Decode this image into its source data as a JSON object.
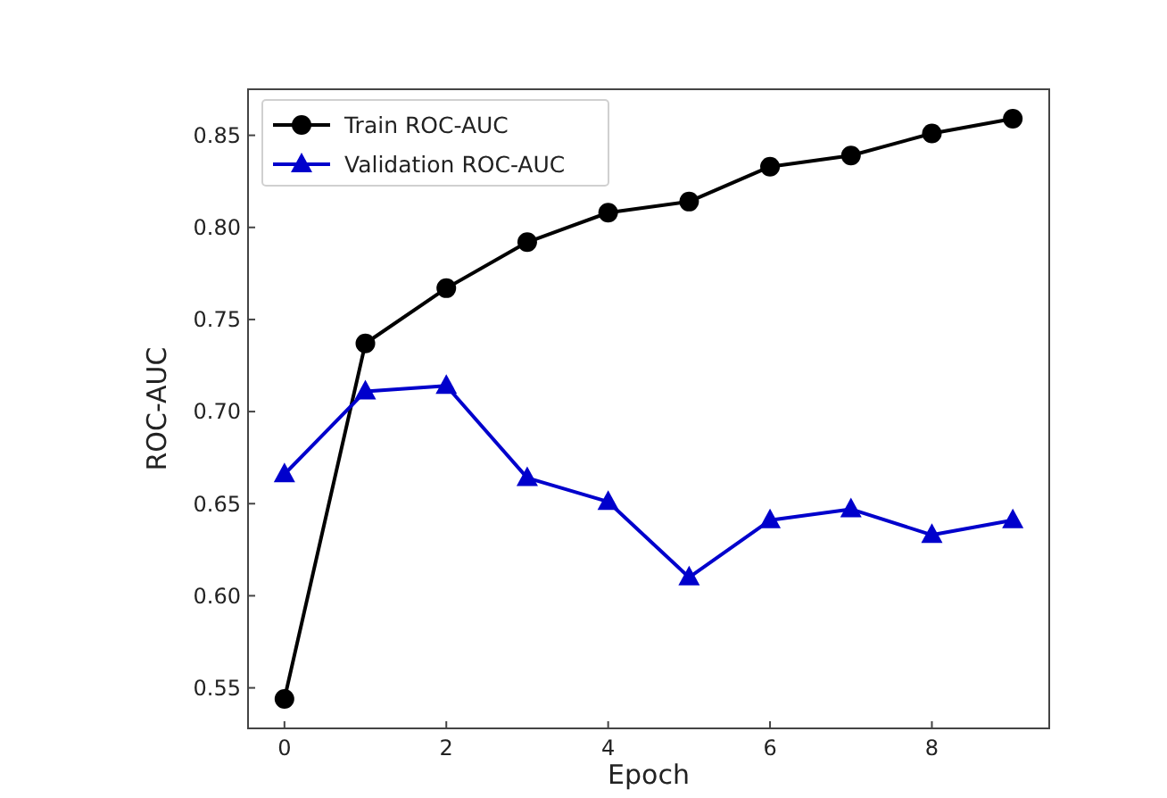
{
  "chart_data": {
    "type": "line",
    "xlabel": "Epoch",
    "ylabel": "ROC-AUC",
    "x": [
      0,
      1,
      2,
      3,
      4,
      5,
      6,
      7,
      8,
      9
    ],
    "series": [
      {
        "name": "Train ROC-AUC",
        "color": "#000000",
        "marker": "circle",
        "values": [
          0.544,
          0.737,
          0.767,
          0.792,
          0.808,
          0.814,
          0.833,
          0.839,
          0.851,
          0.859
        ]
      },
      {
        "name": "Validation ROC-AUC",
        "color": "#0000cc",
        "marker": "triangle",
        "values": [
          0.666,
          0.711,
          0.714,
          0.664,
          0.651,
          0.61,
          0.641,
          0.647,
          0.633,
          0.641
        ]
      }
    ],
    "xlim": [
      -0.45,
      9.45
    ],
    "xticks": [
      0,
      2,
      4,
      6,
      8
    ],
    "ylim": [
      0.528,
      0.875
    ],
    "yticks": [
      0.55,
      {
        "value": 0.6,
        "label": "0.60"
      },
      0.65,
      {
        "value": 0.7,
        "label": "0.70"
      },
      0.75,
      {
        "value": 0.8,
        "label": "0.80"
      },
      0.85
    ],
    "grid": false,
    "legend": "top left",
    "line_style": "solid"
  }
}
